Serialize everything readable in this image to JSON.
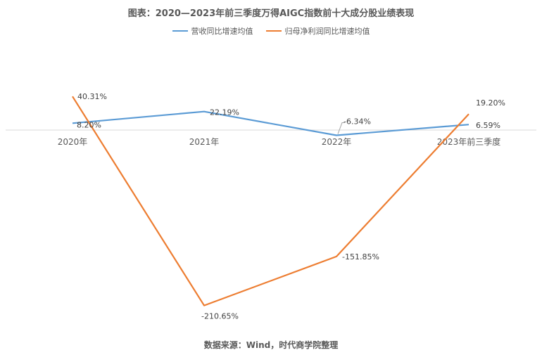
{
  "chart_data": {
    "type": "line",
    "title": "图表：2020—2023年前三季度万得AIGC指数前十大成分股业绩表现",
    "categories": [
      "2020年",
      "2021年",
      "2022年",
      "2023年前三季度"
    ],
    "series": [
      {
        "name": "营收同比增速均值",
        "color": "#5B9BD5",
        "values": [
          8.2,
          22.19,
          -6.34,
          6.59
        ],
        "labels": [
          "8.20%",
          "22.19%",
          "-6.34%",
          "6.59%"
        ]
      },
      {
        "name": "归母净利润同比增速均值",
        "color": "#ED7D31",
        "values": [
          40.31,
          -210.65,
          -151.85,
          19.2
        ],
        "labels": [
          "40.31%",
          "-210.65%",
          "-151.85%",
          "19.20%"
        ]
      }
    ],
    "ylim": [
      -250,
      50
    ],
    "grid": false,
    "legend_position": "top"
  },
  "source": "数据来源：Wind，时代商学院整理"
}
